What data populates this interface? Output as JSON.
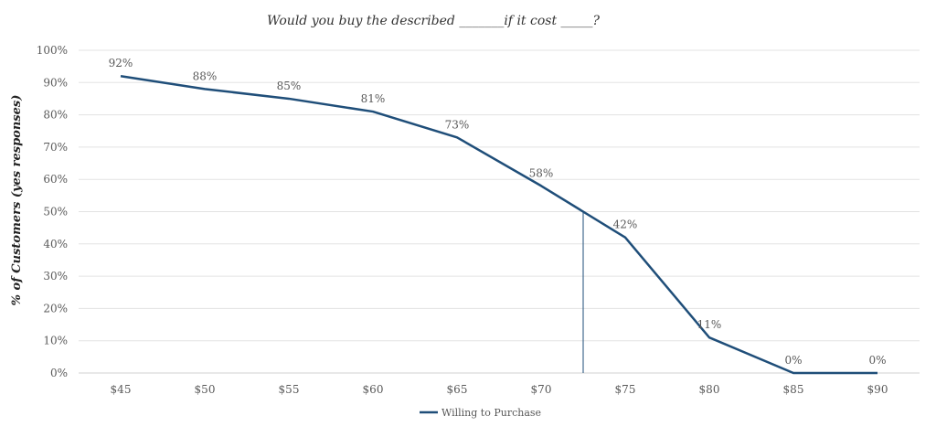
{
  "chart_data": {
    "type": "line",
    "title": "Would you buy the described _______if it cost _____?",
    "xlabel": "",
    "ylabel": "% of Customers (yes responses)",
    "categories": [
      "$45",
      "$50",
      "$55",
      "$60",
      "$65",
      "$70",
      "$75",
      "$80",
      "$85",
      "$90"
    ],
    "series": [
      {
        "name": "Willing to Purchase",
        "values": [
          92,
          88,
          85,
          81,
          73,
          58,
          42,
          11,
          0,
          0
        ],
        "labels": [
          "92%",
          "88%",
          "85%",
          "81%",
          "73%",
          "58%",
          "42%",
          "11%",
          "0%",
          "0%"
        ],
        "color": "#1f4e79"
      }
    ],
    "ylim": [
      0,
      100
    ],
    "yticks": [
      "0%",
      "10%",
      "20%",
      "30%",
      "40%",
      "50%",
      "60%",
      "70%",
      "80%",
      "90%",
      "100%"
    ],
    "grid": true,
    "legend": "bottom",
    "reference_line": {
      "x": 72.5,
      "y": 50,
      "color": "#1f4e79"
    }
  }
}
